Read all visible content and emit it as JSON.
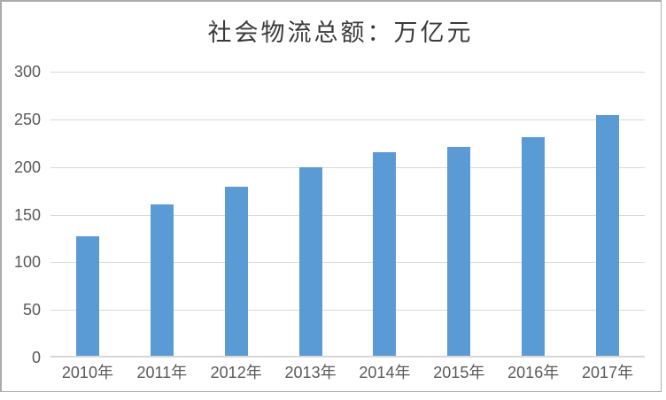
{
  "chart_data": {
    "type": "bar",
    "title": "社会物流总额：万亿元",
    "categories": [
      "2010年",
      "2011年",
      "2012年",
      "2013年",
      "2014年",
      "2015年",
      "2016年",
      "2017年"
    ],
    "values": [
      125.4,
      158.4,
      177.3,
      197.8,
      213.5,
      219.2,
      229.7,
      252.8
    ],
    "xlabel": "",
    "ylabel": "",
    "ylim": [
      0,
      300
    ],
    "yticks": [
      0,
      50,
      100,
      150,
      200,
      250,
      300
    ],
    "grid": true,
    "legend": false,
    "colors": {
      "bar": "#5B9BD5",
      "gridline": "#D9D9D9",
      "axis_line": "#D7D7D7",
      "tick_label": "#595959",
      "title": "#3A3A3A",
      "frame_border": "#ABABAB",
      "background": "#FFFFFF"
    }
  }
}
